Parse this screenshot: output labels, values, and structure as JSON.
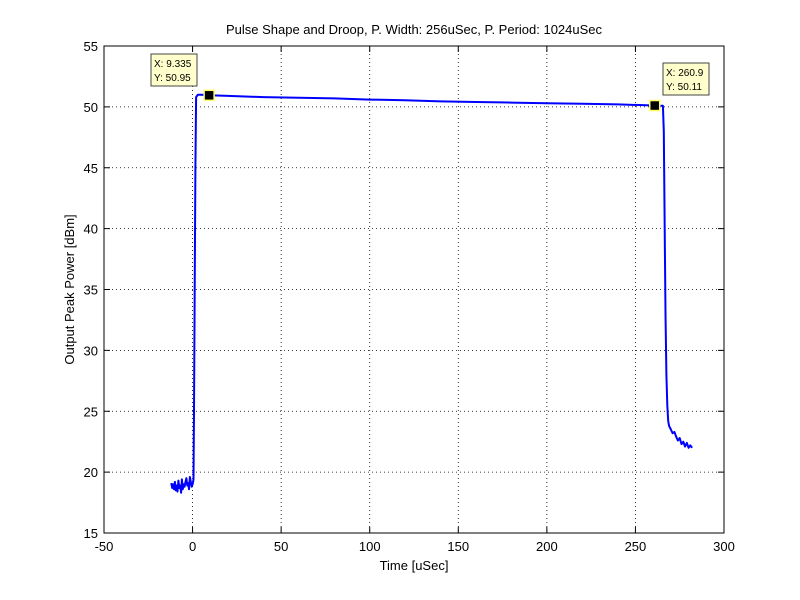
{
  "chart_data": {
    "type": "line",
    "title": "Pulse Shape and Droop, P. Width: 256uSec, P. Period: 1024uSec",
    "xlabel": "Time [uSec]",
    "ylabel": "Output Peak Power [dBm]",
    "xlim": [
      -50,
      300
    ],
    "ylim": [
      15,
      55
    ],
    "xticks": [
      -50,
      0,
      50,
      100,
      150,
      200,
      250,
      300
    ],
    "yticks": [
      15,
      20,
      25,
      30,
      35,
      40,
      45,
      50,
      55
    ],
    "xtick_labels": [
      "-50",
      "0",
      "50",
      "100",
      "150",
      "200",
      "250",
      "300"
    ],
    "ytick_labels": [
      "15",
      "20",
      "25",
      "30",
      "35",
      "40",
      "45",
      "50",
      "55"
    ],
    "grid": true,
    "series": [
      {
        "color": "#0000ff",
        "x": [
          -12,
          -11.5,
          -11,
          -10.5,
          -10,
          -9.5,
          -9,
          -8.5,
          -8,
          -7.5,
          -7,
          -6.5,
          -6,
          -5.5,
          -5,
          -4.5,
          -4,
          -3.5,
          -3,
          -2.5,
          -2,
          -1.5,
          -1,
          -0.5,
          0,
          0.5,
          0.8,
          1.2,
          1.6,
          2,
          3,
          5,
          9.335,
          20,
          40,
          60,
          80,
          100,
          120,
          140,
          160,
          180,
          200,
          220,
          240,
          260.9,
          264,
          265.5,
          266,
          266.5,
          267,
          267.5,
          268,
          268.5,
          269,
          270,
          271,
          272,
          273,
          274,
          275,
          276,
          277,
          278,
          279,
          280,
          281,
          282
        ],
        "y": [
          19.1,
          18.7,
          19.0,
          18.6,
          19.2,
          18.5,
          18.9,
          18.4,
          19.3,
          18.7,
          18.9,
          18.3,
          19.4,
          18.6,
          19.0,
          18.8,
          19.2,
          19.5,
          18.9,
          19.1,
          18.6,
          19.6,
          19.2,
          18.8,
          19.0,
          19.4,
          25,
          35,
          45,
          50.8,
          51.0,
          51.0,
          50.95,
          50.9,
          50.8,
          50.75,
          50.7,
          50.6,
          50.55,
          50.45,
          50.4,
          50.35,
          50.3,
          50.25,
          50.2,
          50.11,
          50.1,
          50.1,
          48,
          40,
          33,
          28,
          25.5,
          24.2,
          23.8,
          23.5,
          23.2,
          23.3,
          22.9,
          22.6,
          22.8,
          22.3,
          22.5,
          22.1,
          22.4,
          22.0,
          22.2,
          22.0
        ]
      }
    ],
    "datatips": [
      {
        "x": 9.335,
        "y": 50.95,
        "x_text": "X: 9.335",
        "y_text": "Y: 50.95"
      },
      {
        "x": 260.9,
        "y": 50.11,
        "x_text": "X: 260.9",
        "y_text": "Y: 50.11"
      }
    ]
  }
}
